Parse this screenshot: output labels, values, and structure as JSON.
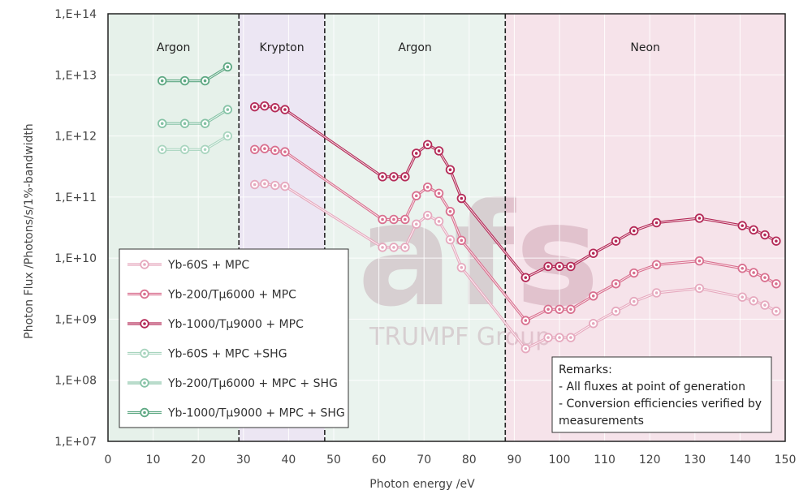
{
  "chart_data": {
    "type": "line",
    "xlabel": "Photon energy /eV",
    "ylabel": "Photon Flux /Photons/s/1%-bandwidth",
    "xlim": [
      0,
      150
    ],
    "ylim": [
      10000000.0,
      100000000000000.0
    ],
    "y_scale": "log",
    "grid": true,
    "x_ticks": [
      "0",
      "10",
      "20",
      "30",
      "40",
      "50",
      "60",
      "70",
      "80",
      "90",
      "100",
      "110",
      "120",
      "130",
      "140",
      "150"
    ],
    "y_ticks": [
      "1,E+07",
      "1,E+08",
      "1,E+09",
      "1,E+10",
      "1,E+11",
      "1,E+12",
      "1,E+13",
      "1,E+14"
    ],
    "regions": [
      {
        "label": "Argon",
        "x0": 0,
        "x1": 29,
        "color": "#e6f1ea"
      },
      {
        "label": "Krypton",
        "x0": 29,
        "x1": 48,
        "color": "#ece6f3"
      },
      {
        "label": "Argon",
        "x0": 48,
        "x1": 88,
        "color": "#eaf3ee"
      },
      {
        "label": "Neon",
        "x0": 88,
        "x1": 150,
        "color": "#f6e3ea"
      }
    ],
    "boundaries": [
      29,
      48,
      88
    ],
    "series": [
      {
        "name": "Yb-60S + MPC",
        "color": "#e6a9be",
        "x": [
          32.5,
          34.7,
          37,
          39.2,
          60.8,
          63.3,
          65.8,
          68.3,
          70.8,
          73.3,
          75.8,
          78.3,
          92.5,
          97.5,
          100,
          102.5,
          107.5,
          112.5,
          116.5,
          121.5,
          131,
          140.5,
          143,
          145.5,
          148
        ],
        "y": [
          160000000000.0,
          165000000000.0,
          155000000000.0,
          150000000000.0,
          15000000000.0,
          15000000000.0,
          15000000000.0,
          36000000000.0,
          50000000000.0,
          40000000000.0,
          20000000000.0,
          7000000000.0,
          330000000.0,
          500000000.0,
          500000000.0,
          500000000.0,
          850000000.0,
          1350000000.0,
          1950000000.0,
          2700000000.0,
          3200000000.0,
          2300000000.0,
          2000000000.0,
          1700000000.0,
          1350000000.0
        ]
      },
      {
        "name": "Yb-200/Tµ6000 + MPC",
        "color": "#d9708f",
        "x": [
          32.5,
          34.7,
          37,
          39.2,
          60.8,
          63.3,
          65.8,
          68.3,
          70.8,
          73.3,
          75.8,
          78.3,
          92.5,
          97.5,
          100,
          102.5,
          107.5,
          112.5,
          116.5,
          121.5,
          131,
          140.5,
          143,
          145.5,
          148
        ],
        "y": [
          600000000000.0,
          620000000000.0,
          580000000000.0,
          550000000000.0,
          43000000000.0,
          43000000000.0,
          43000000000.0,
          105000000000.0,
          145000000000.0,
          115000000000.0,
          58000000000.0,
          19500000000.0,
          950000000.0,
          1450000000.0,
          1450000000.0,
          1450000000.0,
          2400000000.0,
          3800000000.0,
          5700000000.0,
          7800000000.0,
          9000000000.0,
          6800000000.0,
          5800000000.0,
          4800000000.0,
          3800000000.0
        ]
      },
      {
        "name": "Yb-1000/Tµ9000 + MPC",
        "color": "#b42a57",
        "x": [
          32.5,
          34.7,
          37,
          39.2,
          60.8,
          63.3,
          65.8,
          68.3,
          70.8,
          73.3,
          75.8,
          78.3,
          92.5,
          97.5,
          100,
          102.5,
          107.5,
          112.5,
          116.5,
          121.5,
          131,
          140.5,
          143,
          145.5,
          148
        ],
        "y": [
          3000000000000.0,
          3100000000000.0,
          2900000000000.0,
          2700000000000.0,
          215000000000.0,
          215000000000.0,
          215000000000.0,
          520000000000.0,
          720000000000.0,
          570000000000.0,
          280000000000.0,
          95000000000.0,
          4800000000.0,
          7300000000.0,
          7300000000.0,
          7300000000.0,
          12000000000.0,
          19000000000.0,
          28000000000.0,
          38000000000.0,
          45000000000.0,
          34000000000.0,
          29000000000.0,
          24000000000.0,
          19000000000.0
        ]
      },
      {
        "name": "Yb-60S + MPC +SHG",
        "color": "#a9d5bf",
        "x": [
          12,
          17,
          21.5,
          26.5
        ],
        "y": [
          600000000000.0,
          600000000000.0,
          600000000000.0,
          1000000000000.0
        ]
      },
      {
        "name": "Yb-200/Tµ6000 + MPC + SHG",
        "color": "#86c3a6",
        "x": [
          12,
          17,
          21.5,
          26.5
        ],
        "y": [
          1600000000000.0,
          1600000000000.0,
          1600000000000.0,
          2700000000000.0
        ]
      },
      {
        "name": "Yb-1000/Tµ9000 + MPC + SHG",
        "color": "#5fa984",
        "x": [
          12,
          17,
          21.5,
          26.5
        ],
        "y": [
          8000000000000.0,
          8000000000000.0,
          8000000000000.0,
          13500000000000.0
        ]
      }
    ]
  },
  "remarks": {
    "title": "Remarks:",
    "line1": "- All fluxes at point of generation",
    "line2": "- Conversion efficiencies verified by",
    "line3": "measurements"
  },
  "watermark": {
    "logo_text": "afs",
    "group_text": "TRUMPF Group"
  }
}
